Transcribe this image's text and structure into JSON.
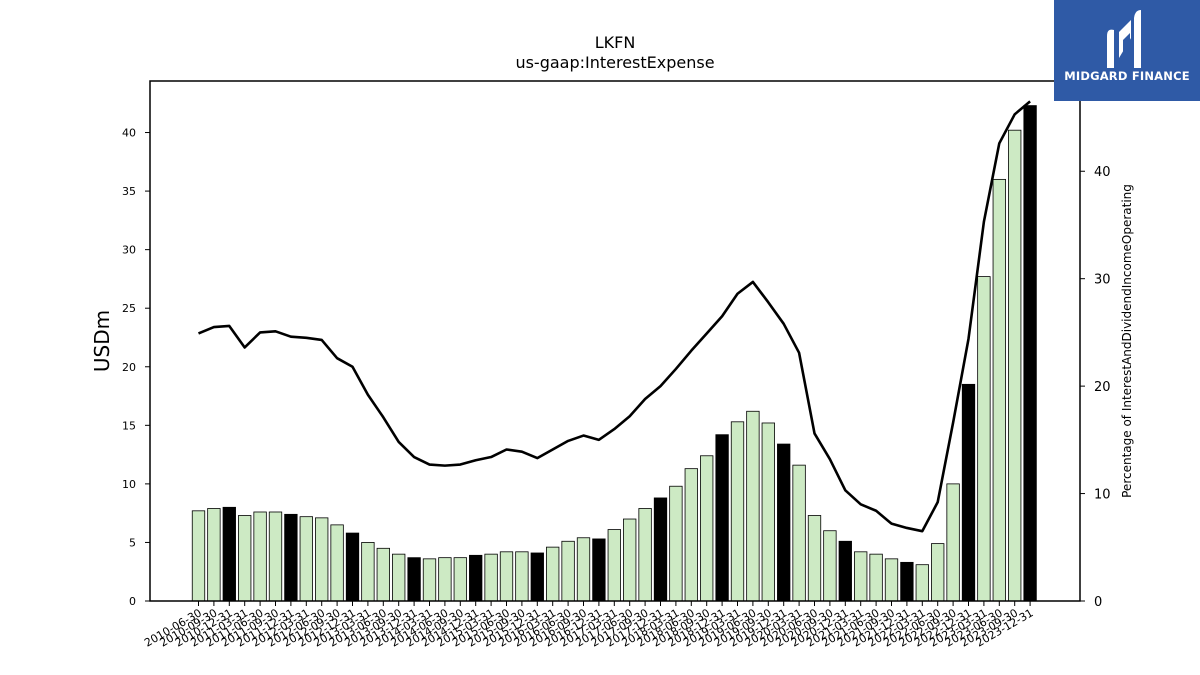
{
  "brand": {
    "name": "MIDGARD FINANCE",
    "bg_color": "#2f5aa6"
  },
  "chart_data": {
    "type": "bar",
    "title": "LKFN",
    "subtitle": "us-gaap:InterestExpense",
    "ylabel": "USDm",
    "y2label": "Percentage of InterestAndDividendIncomeOperating",
    "ylim": [
      0,
      44.4
    ],
    "y2lim": [
      0,
      48.4
    ],
    "yticks": [
      0,
      5,
      10,
      15,
      20,
      25,
      30,
      35,
      40
    ],
    "y2ticks": [
      0,
      10,
      20,
      30,
      40
    ],
    "grid": false,
    "bar_color": "#cdeac4",
    "highlight_color": "#000000",
    "line_color": "#000000",
    "categories": [
      "2010-06-30",
      "2010-09-30",
      "2010-12-31",
      "2011-03-31",
      "2011-06-30",
      "2011-09-30",
      "2011-12-31",
      "2012-03-31",
      "2012-06-30",
      "2012-09-30",
      "2012-12-31",
      "2013-03-31",
      "2013-06-30",
      "2013-09-30",
      "2013-12-31",
      "2014-03-31",
      "2014-06-30",
      "2014-09-30",
      "2014-12-31",
      "2015-03-31",
      "2015-06-30",
      "2015-09-30",
      "2015-12-31",
      "2016-03-31",
      "2016-06-30",
      "2016-09-30",
      "2016-12-31",
      "2017-03-31",
      "2017-06-30",
      "2017-09-30",
      "2017-12-31",
      "2018-03-31",
      "2018-06-30",
      "2018-09-30",
      "2018-12-31",
      "2019-03-31",
      "2019-06-30",
      "2019-09-30",
      "2019-12-31",
      "2020-03-31",
      "2020-06-30",
      "2020-09-30",
      "2020-12-31",
      "2021-03-31",
      "2021-06-30",
      "2021-09-30",
      "2021-12-31",
      "2022-03-31",
      "2022-06-30",
      "2022-09-30",
      "2022-12-31",
      "2023-03-31",
      "2023-06-30",
      "2023-09-30",
      "2023-12-31"
    ],
    "series": [
      {
        "type": "bar",
        "values": [
          7.7,
          7.9,
          8.0,
          7.3,
          7.6,
          7.6,
          7.4,
          7.2,
          7.1,
          6.5,
          5.8,
          5.0,
          4.5,
          4.0,
          3.7,
          3.6,
          3.7,
          3.7,
          3.9,
          4.0,
          4.2,
          4.2,
          4.1,
          4.6,
          5.1,
          5.4,
          5.3,
          6.1,
          7.0,
          7.9,
          8.8,
          9.8,
          11.3,
          12.4,
          14.2,
          15.3,
          16.2,
          15.2,
          13.4,
          11.6,
          7.3,
          6.0,
          5.1,
          4.2,
          4.0,
          3.6,
          3.3,
          3.1,
          4.9,
          10.0,
          18.5,
          27.7,
          36.0,
          40.2,
          42.3
        ],
        "highlight": [
          false,
          false,
          true,
          false,
          false,
          false,
          true,
          false,
          false,
          false,
          true,
          false,
          false,
          false,
          true,
          false,
          false,
          false,
          true,
          false,
          false,
          false,
          true,
          false,
          false,
          false,
          true,
          false,
          false,
          false,
          true,
          false,
          false,
          false,
          true,
          false,
          false,
          false,
          true,
          false,
          false,
          false,
          true,
          false,
          false,
          false,
          true,
          false,
          false,
          false,
          true,
          false,
          false,
          false,
          true
        ]
      },
      {
        "type": "line",
        "axis": "right",
        "values": [
          24.9,
          25.5,
          25.6,
          23.6,
          25.0,
          25.1,
          24.6,
          24.5,
          24.3,
          22.6,
          21.8,
          19.2,
          17.1,
          14.8,
          13.4,
          12.7,
          12.6,
          12.7,
          13.1,
          13.4,
          14.1,
          13.9,
          13.3,
          14.1,
          14.9,
          15.4,
          15.0,
          16.0,
          17.2,
          18.8,
          20.0,
          21.6,
          23.3,
          24.9,
          26.5,
          28.6,
          29.7,
          27.8,
          25.8,
          23.1,
          15.6,
          13.2,
          10.3,
          9.0,
          8.4,
          7.2,
          6.8,
          6.5,
          9.2,
          16.6,
          24.4,
          35.3,
          42.6,
          45.3,
          46.5
        ]
      }
    ]
  }
}
